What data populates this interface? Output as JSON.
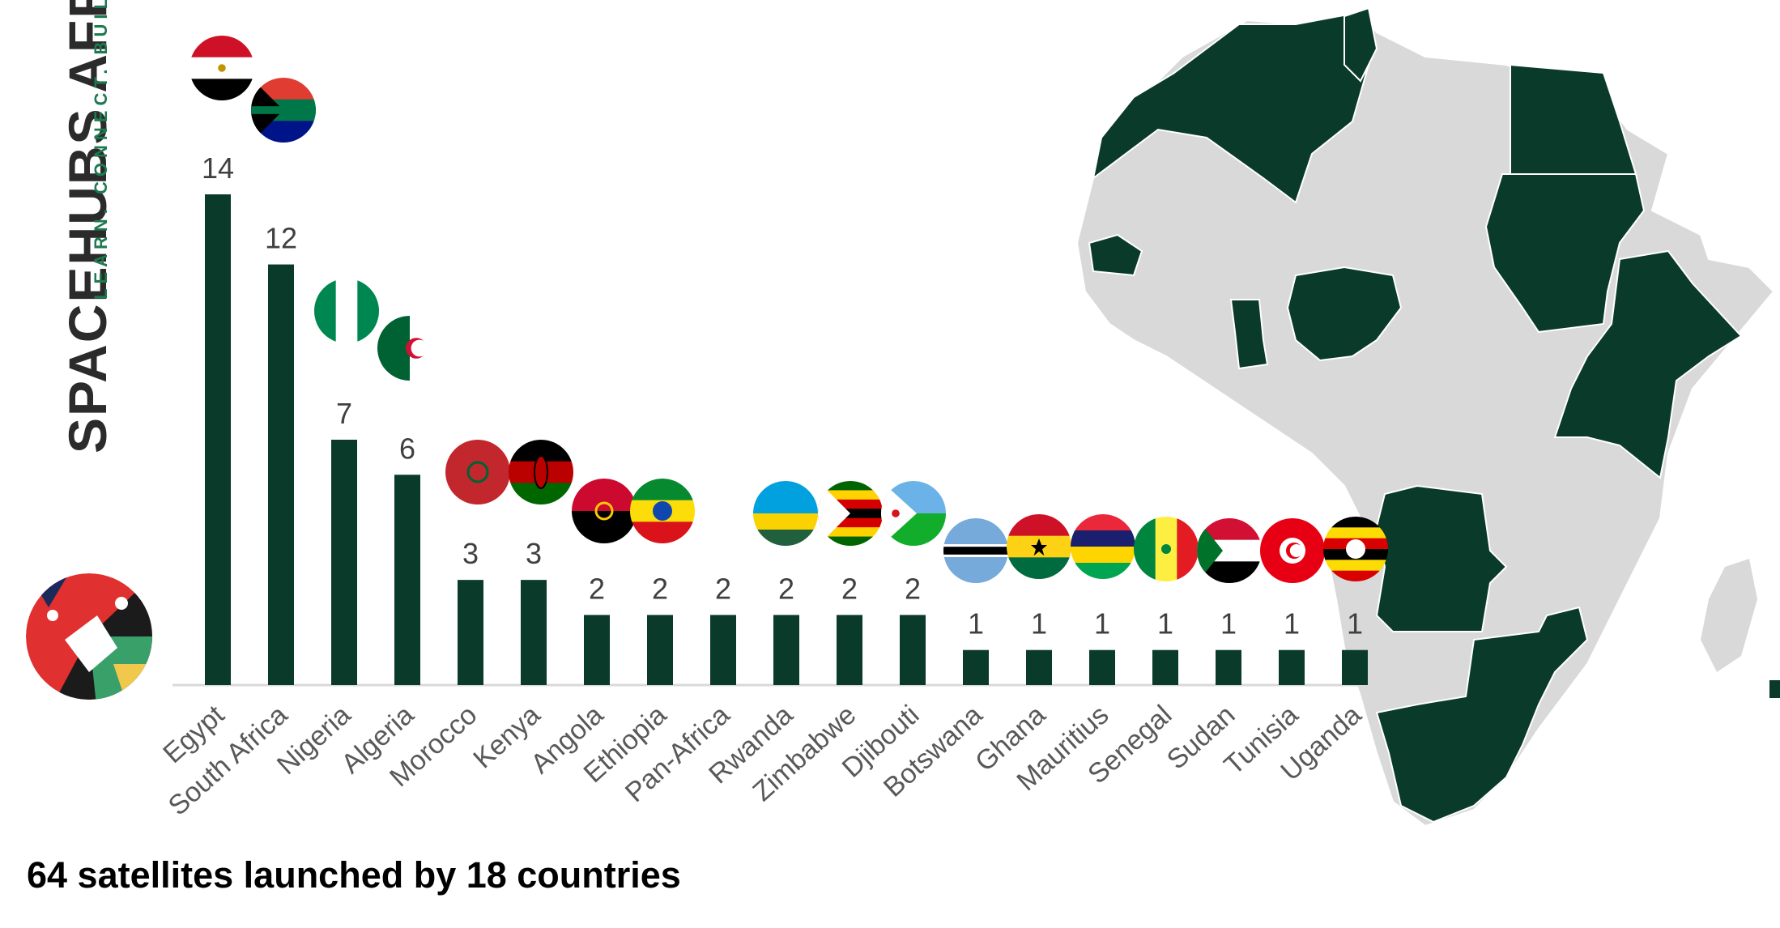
{
  "brand": {
    "name": "SPACEHUBS AFRICA",
    "tagline": "LEARN. CONNECT. BUILD."
  },
  "caption": "64 satellites launched by 18 countries",
  "colors": {
    "bar": "#0a3a2a",
    "map_highlight": "#0a3a2a",
    "map_base": "#d9d9d9",
    "label": "#595959",
    "value": "#404040"
  },
  "chart_data": {
    "type": "bar",
    "title": "",
    "xlabel": "",
    "ylabel": "",
    "ylim": [
      0,
      14
    ],
    "grid": false,
    "categories": [
      "Egypt",
      "South Africa",
      "Nigeria",
      "Algeria",
      "Morocco",
      "Kenya",
      "Angola",
      "Ethiopia",
      "Pan-Africa",
      "Rwanda",
      "Zimbabwe",
      "Djibouti",
      "Botswana",
      "Ghana",
      "Mauritius",
      "Senegal",
      "Sudan",
      "Tunisia",
      "Uganda"
    ],
    "values": [
      14,
      12,
      7,
      6,
      3,
      3,
      2,
      2,
      2,
      2,
      2,
      2,
      1,
      1,
      1,
      1,
      1,
      1,
      1
    ],
    "flags": [
      "egypt-flag-icon",
      "south-africa-flag-icon",
      "nigeria-flag-icon",
      "algeria-flag-icon",
      "morocco-flag-icon",
      "kenya-flag-icon",
      "angola-flag-icon",
      "ethiopia-flag-icon",
      "",
      "rwanda-flag-icon",
      "zimbabwe-flag-icon",
      "djibouti-flag-icon",
      "botswana-flag-icon",
      "ghana-flag-icon",
      "mauritius-flag-icon",
      "senegal-flag-icon",
      "sudan-flag-icon",
      "tunisia-flag-icon",
      "uganda-flag-icon"
    ]
  },
  "map": {
    "icon": "africa-map-icon"
  },
  "logo": {
    "icon": "spacehubs-logo-icon"
  }
}
